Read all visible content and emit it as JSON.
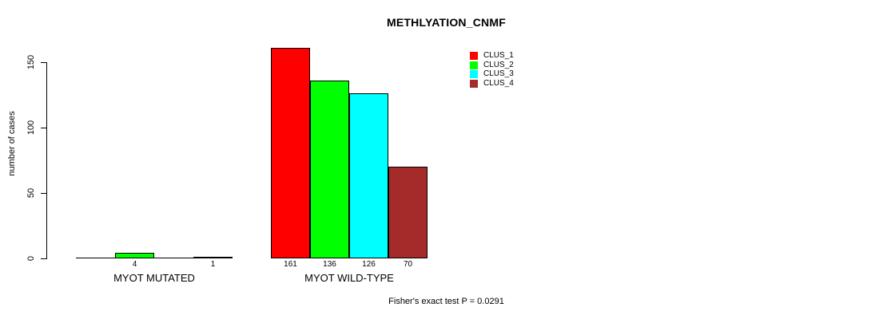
{
  "chart_data": {
    "type": "bar",
    "title": "METHLYATION_CNMF",
    "ylabel": "number of cases",
    "xlabel": "",
    "annotation": "Fisher's exact test P = 0.0291",
    "yticks": [
      "0",
      "50",
      "100",
      "150"
    ],
    "ylim": [
      0,
      165
    ],
    "grid": false,
    "legend_position": "top-right-inside",
    "background_color": "#ffffff",
    "axis_color": "#000000",
    "clusters": [
      {
        "name": "CLUS_1",
        "color": "#ff0000"
      },
      {
        "name": "CLUS_2",
        "color": "#00ff00"
      },
      {
        "name": "CLUS_3",
        "color": "#00ffff"
      },
      {
        "name": "CLUS_4",
        "color": "#a52a2a"
      }
    ],
    "groups": [
      {
        "label": "MYOT MUTATED",
        "values": [
          0,
          4,
          0,
          1
        ],
        "value_labels": [
          "",
          "4",
          "",
          "1"
        ]
      },
      {
        "label": "MYOT WILD-TYPE",
        "values": [
          161,
          136,
          126,
          70
        ],
        "value_labels": [
          "161",
          "136",
          "126",
          "70"
        ]
      }
    ]
  }
}
